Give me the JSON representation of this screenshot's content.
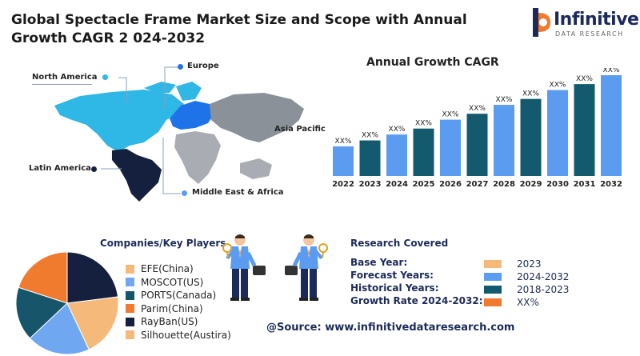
{
  "header": {
    "title": "Global Spectacle Frame Market Size and Scope with Annual Growth CAGR 2 024-2032"
  },
  "logo": {
    "name": "Infinitive",
    "tagline": "DATA RESEARCH"
  },
  "map": {
    "regions": [
      {
        "name": "North America",
        "color": "#2fb7e6"
      },
      {
        "name": "Europe",
        "color": "#1e73e8"
      },
      {
        "name": "Asia Pacific",
        "color": "#8a9199"
      },
      {
        "name": "Latin America",
        "color": "#14203d"
      },
      {
        "name": "Middle East & Africa",
        "color": "#a9adb3"
      }
    ]
  },
  "chart_data": {
    "type": "bar",
    "title": "Annual Growth CAGR",
    "categories": [
      "2022",
      "2023",
      "2024",
      "2025",
      "2026",
      "2027",
      "2028",
      "2029",
      "2030",
      "2031",
      "2032"
    ],
    "value_labels": [
      "XX%",
      "XX%",
      "XX%",
      "XX%",
      "XX%",
      "XX%",
      "XX%",
      "XX%",
      "XX%",
      "XX%",
      "XX%"
    ],
    "values": [
      1.0,
      1.2,
      1.4,
      1.6,
      1.9,
      2.1,
      2.4,
      2.6,
      2.9,
      3.1,
      3.4
    ],
    "colors": [
      "#5b9cf0",
      "#135a6e",
      "#5b9cf0",
      "#135a6e",
      "#5b9cf0",
      "#135a6e",
      "#5b9cf0",
      "#135a6e",
      "#5b9cf0",
      "#135a6e",
      "#5b9cf0"
    ]
  },
  "companies": {
    "title": "Companies/Key Players",
    "items": [
      {
        "label": "EFE(China)",
        "color": "#f5b97a",
        "share": 0.2
      },
      {
        "label": "MOSCOT(US)",
        "color": "#6fa8f0",
        "share": 0.2
      },
      {
        "label": "PORTS(Canada)",
        "color": "#17566a",
        "share": 0.17
      },
      {
        "label": "Parim(China)",
        "color": "#f07a2e",
        "share": 0.2
      },
      {
        "label": "RayBan(US)",
        "color": "#14203d",
        "share": 0.23
      },
      {
        "label": "Silhouette(Austira)",
        "color": "#f5b97a",
        "share": 0.0
      }
    ]
  },
  "research": {
    "title": "Research Covered",
    "rows": [
      {
        "label": "Base Year:",
        "value": "2023",
        "color": "#f5b97a"
      },
      {
        "label": "Forecast Years:",
        "value": "2024-2032",
        "color": "#5b9cf0"
      },
      {
        "label": "Historical Years:",
        "value": "2018-2023",
        "color": "#135a6e"
      },
      {
        "label": "Growth Rate 2024-2032:",
        "value": "XX%",
        "color": "#f07a2e"
      }
    ]
  },
  "footer": {
    "source": "@Source: www.infinitivedataresearch.com"
  }
}
